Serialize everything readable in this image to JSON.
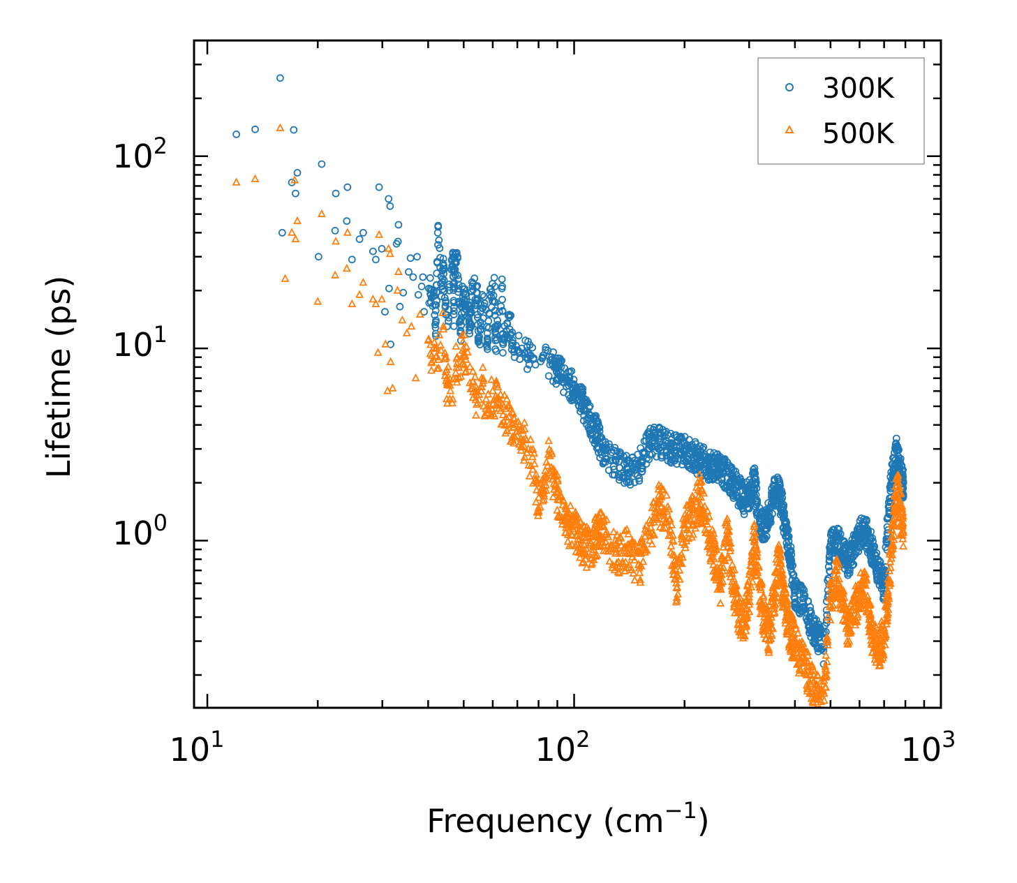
{
  "chart_data": {
    "type": "scatter",
    "xscale": "log",
    "yscale": "log",
    "xlim": [
      9.2,
      1000
    ],
    "ylim": [
      0.135,
      400
    ],
    "xlabel": {
      "main": "Frequency (cm",
      "sup": "−1",
      "close": ")"
    },
    "ylabel": "Lifetime (ps)",
    "x_ticks": [
      {
        "base": "10",
        "exp": "1",
        "value": 10
      },
      {
        "base": "10",
        "exp": "2",
        "value": 100
      },
      {
        "base": "10",
        "exp": "3",
        "value": 1000
      }
    ],
    "y_ticks": [
      {
        "base": "10",
        "exp": "0",
        "value": 1
      },
      {
        "base": "10",
        "exp": "1",
        "value": 10
      },
      {
        "base": "10",
        "exp": "2",
        "value": 100
      }
    ],
    "legend": {
      "position": "upper-right",
      "entries": [
        "300K",
        "500K"
      ]
    },
    "series": [
      {
        "name": "300K",
        "marker": "circle",
        "color": "#1f77b4",
        "points": [
          [
            12,
            130
          ],
          [
            13.5,
            138
          ],
          [
            15.8,
            255
          ],
          [
            17.2,
            137
          ],
          [
            17.6,
            82
          ],
          [
            17,
            73
          ],
          [
            17.4,
            64
          ],
          [
            16,
            40
          ],
          [
            20.1,
            30
          ],
          [
            20.5,
            91
          ],
          [
            22.4,
            64
          ],
          [
            22.3,
            41
          ],
          [
            24.1,
            69
          ],
          [
            24,
            46
          ],
          [
            24.8,
            29
          ],
          [
            26,
            37
          ],
          [
            26.6,
            40
          ],
          [
            28.3,
            32
          ],
          [
            28.8,
            29
          ],
          [
            29.4,
            69
          ],
          [
            29.9,
            33
          ],
          [
            31.2,
            60
          ],
          [
            31.5,
            55
          ],
          [
            33.2,
            44
          ],
          [
            33.1,
            36
          ],
          [
            32.8,
            35
          ],
          [
            30.5,
            15.5
          ],
          [
            31.3,
            20.5
          ],
          [
            31.6,
            10.5
          ],
          [
            33.5,
            16.5
          ],
          [
            34.2,
            19.5
          ],
          [
            35.4,
            25
          ],
          [
            35.8,
            29.5
          ],
          [
            36.4,
            23.5
          ],
          [
            37.3,
            30
          ],
          [
            37.6,
            19
          ],
          [
            38.4,
            21
          ],
          [
            38.7,
            23.5
          ],
          [
            40.2,
            20.5
          ],
          [
            41.4,
            19.5
          ],
          [
            42.5,
            40
          ],
          [
            43.6,
            21
          ],
          [
            44.1,
            27
          ],
          [
            46.7,
            31
          ],
          [
            47.2,
            28
          ],
          [
            48.1,
            29.5
          ],
          [
            49.6,
            21
          ],
          [
            50.2,
            18
          ],
          [
            51.7,
            15
          ],
          [
            52.8,
            21
          ],
          [
            54.4,
            19.5
          ],
          [
            56.2,
            19
          ],
          [
            58.9,
            19
          ],
          [
            60.8,
            21
          ],
          [
            63.6,
            20.5
          ],
          [
            66.5,
            15
          ],
          [
            39,
            15.5
          ],
          [
            42,
            14
          ],
          [
            45,
            13
          ],
          [
            47,
            15
          ],
          [
            49,
            12
          ],
          [
            52,
            13
          ],
          [
            55,
            11
          ],
          [
            58,
            12
          ],
          [
            61,
            11
          ],
          [
            64,
            10.5
          ],
          [
            68,
            11
          ],
          [
            72,
            10
          ],
          [
            75,
            9.5
          ],
          [
            82,
            9
          ],
          [
            90,
            8
          ],
          [
            95,
            7
          ],
          [
            100,
            6.5
          ],
          [
            105,
            5.5
          ],
          [
            110,
            4.5
          ],
          [
            115,
            3.8
          ],
          [
            120,
            3
          ],
          [
            130,
            2.6
          ],
          [
            140,
            2.4
          ],
          [
            150,
            2.5
          ],
          [
            160,
            3.3
          ],
          [
            170,
            3.4
          ],
          [
            180,
            3.2
          ],
          [
            190,
            3.1
          ],
          [
            200,
            3
          ],
          [
            210,
            2.9
          ],
          [
            220,
            2.7
          ],
          [
            230,
            2.6
          ],
          [
            240,
            2.5
          ],
          [
            250,
            2.4
          ],
          [
            260,
            2.3
          ],
          [
            270,
            2.1
          ],
          [
            280,
            1.9
          ],
          [
            290,
            1.7
          ],
          [
            300,
            1.8
          ],
          [
            310,
            2.1
          ],
          [
            320,
            1.3
          ],
          [
            330,
            1.2
          ],
          [
            340,
            1.4
          ],
          [
            350,
            1.8
          ],
          [
            360,
            1.9
          ],
          [
            370,
            1.5
          ],
          [
            380,
            1.1
          ],
          [
            390,
            0.8
          ],
          [
            400,
            0.55
          ],
          [
            420,
            0.5
          ],
          [
            440,
            0.4
          ],
          [
            460,
            0.33
          ],
          [
            480,
            0.28
          ],
          [
            500,
            0.95
          ],
          [
            520,
            1.05
          ],
          [
            540,
            0.9
          ],
          [
            560,
            0.8
          ],
          [
            580,
            0.95
          ],
          [
            600,
            1.1
          ],
          [
            620,
            1.2
          ],
          [
            640,
            1.0
          ],
          [
            660,
            0.85
          ],
          [
            680,
            0.7
          ],
          [
            700,
            0.6
          ],
          [
            720,
            1.5
          ],
          [
            740,
            2.5
          ],
          [
            760,
            3.1
          ],
          [
            780,
            2.2
          ],
          [
            790,
            2.0
          ]
        ]
      },
      {
        "name": "500K",
        "marker": "triangle",
        "color": "#ff7f0e",
        "points": [
          [
            12,
            73
          ],
          [
            13.5,
            76
          ],
          [
            15.8,
            140
          ],
          [
            17.3,
            75
          ],
          [
            17.6,
            46
          ],
          [
            17,
            40
          ],
          [
            17.4,
            37
          ],
          [
            16.3,
            23
          ],
          [
            20,
            17.5
          ],
          [
            20.5,
            50
          ],
          [
            22.4,
            36
          ],
          [
            22.3,
            24
          ],
          [
            24.1,
            40
          ],
          [
            24,
            26
          ],
          [
            24.8,
            17
          ],
          [
            26,
            19
          ],
          [
            26.6,
            22
          ],
          [
            28.3,
            18
          ],
          [
            28.8,
            17
          ],
          [
            29.4,
            39
          ],
          [
            29.9,
            18
          ],
          [
            31.2,
            33
          ],
          [
            31.5,
            31
          ],
          [
            33.2,
            25
          ],
          [
            30.6,
            10.5
          ],
          [
            31.6,
            8.5
          ],
          [
            29.2,
            9.5
          ],
          [
            31,
            6
          ],
          [
            32,
            6.2
          ],
          [
            33,
            20
          ],
          [
            34,
            14
          ],
          [
            35,
            12
          ],
          [
            36,
            13
          ],
          [
            37,
            7
          ],
          [
            38,
            15
          ],
          [
            40,
            11
          ],
          [
            42,
            9
          ],
          [
            44,
            13
          ],
          [
            45,
            7
          ],
          [
            46,
            6
          ],
          [
            48,
            9
          ],
          [
            50,
            10
          ],
          [
            52,
            8
          ],
          [
            54,
            6
          ],
          [
            56,
            7
          ],
          [
            58,
            5
          ],
          [
            60,
            6
          ],
          [
            62,
            5.5
          ],
          [
            64,
            4.5
          ],
          [
            66,
            5
          ],
          [
            68,
            4
          ],
          [
            70,
            3.5
          ],
          [
            72,
            3.8
          ],
          [
            75,
            3
          ],
          [
            78,
            2.5
          ],
          [
            80,
            1.4
          ],
          [
            85,
            2.8
          ],
          [
            90,
            1.8
          ],
          [
            95,
            1.3
          ],
          [
            100,
            1.2
          ],
          [
            105,
            1.0
          ],
          [
            110,
            0.95
          ],
          [
            115,
            1.1
          ],
          [
            120,
            1.2
          ],
          [
            130,
            0.9
          ],
          [
            140,
            0.95
          ],
          [
            150,
            0.75
          ],
          [
            160,
            1.1
          ],
          [
            170,
            1.6
          ],
          [
            180,
            1.5
          ],
          [
            190,
            0.6
          ],
          [
            200,
            1.2
          ],
          [
            210,
            1.4
          ],
          [
            220,
            1.8
          ],
          [
            230,
            1.3
          ],
          [
            240,
            0.9
          ],
          [
            250,
            0.6
          ],
          [
            260,
            1.2
          ],
          [
            270,
            0.7
          ],
          [
            280,
            0.42
          ],
          [
            290,
            0.4
          ],
          [
            300,
            0.55
          ],
          [
            310,
            1.0
          ],
          [
            320,
            0.6
          ],
          [
            330,
            0.4
          ],
          [
            340,
            0.35
          ],
          [
            350,
            0.5
          ],
          [
            360,
            0.9
          ],
          [
            370,
            0.6
          ],
          [
            380,
            0.42
          ],
          [
            390,
            0.35
          ],
          [
            400,
            0.3
          ],
          [
            420,
            0.25
          ],
          [
            440,
            0.2
          ],
          [
            460,
            0.17
          ],
          [
            480,
            0.16
          ],
          [
            500,
            0.55
          ],
          [
            520,
            0.7
          ],
          [
            540,
            0.5
          ],
          [
            560,
            0.35
          ],
          [
            580,
            0.45
          ],
          [
            600,
            0.55
          ],
          [
            620,
            0.6
          ],
          [
            640,
            0.4
          ],
          [
            660,
            0.3
          ],
          [
            680,
            0.28
          ],
          [
            700,
            0.35
          ],
          [
            720,
            0.6
          ],
          [
            740,
            1.2
          ],
          [
            760,
            2.0
          ],
          [
            780,
            1.4
          ],
          [
            790,
            1.1
          ]
        ]
      }
    ]
  }
}
